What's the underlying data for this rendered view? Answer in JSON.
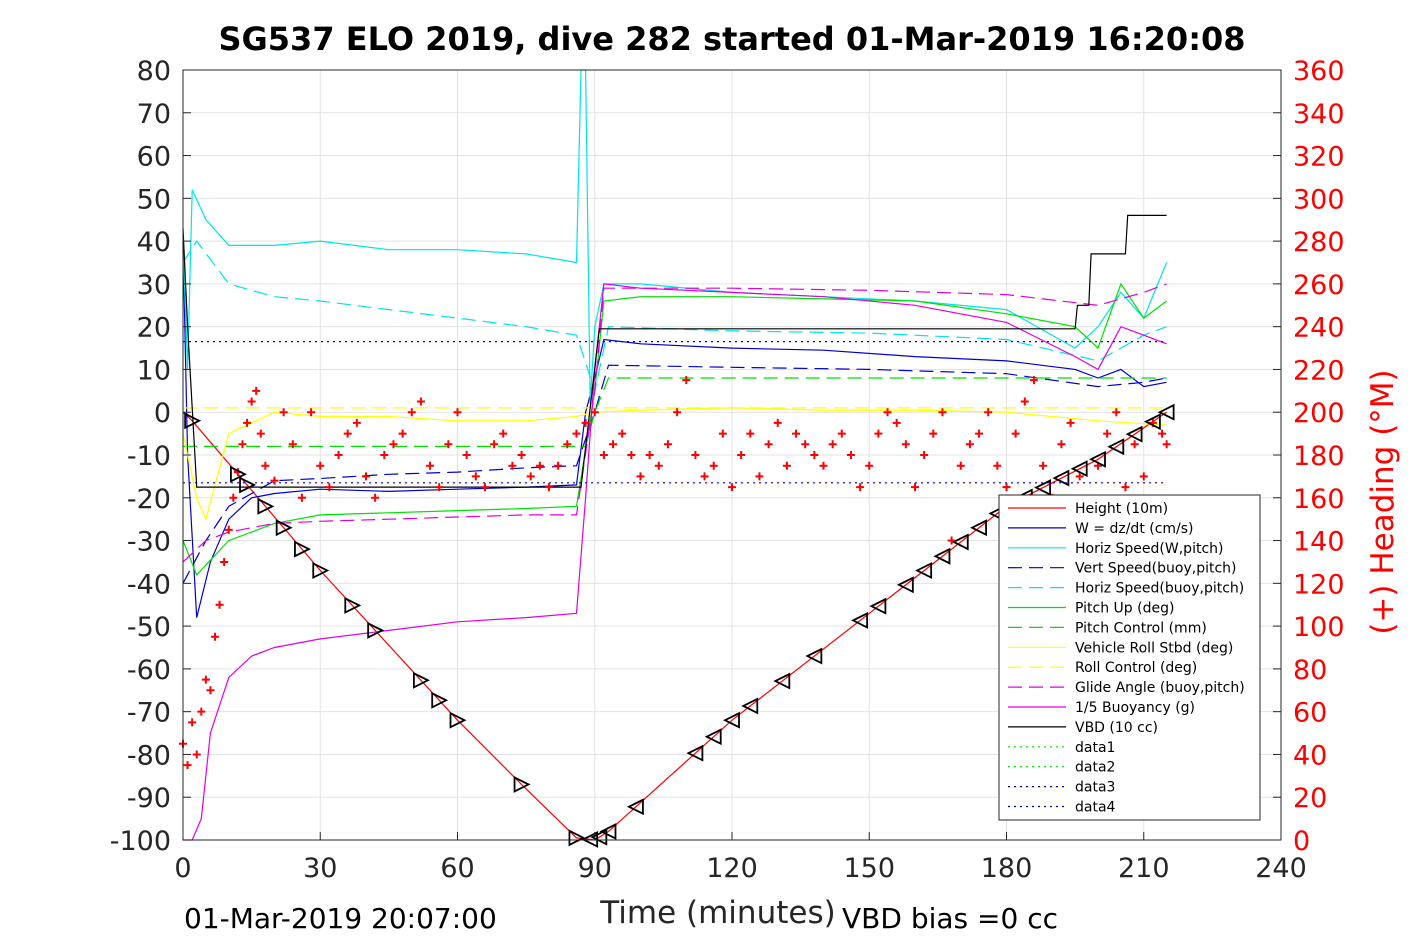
{
  "chart_data": {
    "type": "line",
    "title": "SG537 ELO 2019, dive 282 started 01-Mar-2019 16:20:08",
    "xlabel": "Time (minutes)",
    "ylabel_right": "(+) Heading (°M)",
    "xlim": [
      0,
      240
    ],
    "ylim_left": [
      -100,
      80
    ],
    "ylim_right": [
      0,
      360
    ],
    "x_ticks": [
      0,
      30,
      60,
      90,
      120,
      150,
      180,
      210,
      240
    ],
    "y_ticks_left": [
      80,
      70,
      60,
      50,
      40,
      30,
      20,
      10,
      0,
      -10,
      -20,
      -30,
      -40,
      -50,
      -60,
      -70,
      -80,
      -90,
      -100
    ],
    "y_ticks_right": [
      360,
      340,
      320,
      300,
      280,
      260,
      240,
      220,
      200,
      180,
      160,
      140,
      120,
      100,
      80,
      60,
      40,
      20,
      0
    ],
    "grid": true,
    "legend_position": "lower-right",
    "footer_left": "01-Mar-2019 20:07:00",
    "footer_right": "VBD bias =0 cc",
    "series": [
      {
        "name": "Height (10m)",
        "color": "#ff0000",
        "style": "solid",
        "x": [
          0,
          2,
          30,
          60,
          74,
          86,
          90,
          93,
          120,
          150,
          180,
          200,
          215
        ],
        "y": [
          0,
          -2,
          -37,
          -72,
          -87,
          -99.5,
          -100,
          -98,
          -72,
          -47,
          -22,
          -11,
          0
        ]
      },
      {
        "name": "W = dz/dt (cm/s)",
        "color": "#0000cc",
        "style": "solid",
        "x": [
          0,
          1,
          3,
          6,
          10,
          15,
          20,
          30,
          45,
          60,
          75,
          86,
          88,
          90,
          92,
          100,
          120,
          140,
          160,
          180,
          195,
          200,
          205,
          210,
          215
        ],
        "y": [
          40,
          -10,
          -48,
          -35,
          -25,
          -20,
          -19,
          -18,
          -18.5,
          -18,
          -17.5,
          -17,
          0,
          8,
          17,
          16,
          15,
          14.5,
          13,
          12,
          10,
          8,
          10,
          6,
          7
        ]
      },
      {
        "name": "Horiz Speed(W,pitch)",
        "color": "#00e5e5",
        "style": "solid",
        "x": [
          0,
          1,
          2,
          5,
          10,
          20,
          30,
          45,
          60,
          75,
          86,
          87,
          88,
          89,
          90,
          92,
          100,
          120,
          140,
          160,
          180,
          195,
          200,
          205,
          210,
          215
        ],
        "y": [
          40,
          10,
          52,
          45,
          39,
          39,
          40,
          38,
          38,
          37,
          35,
          80,
          80,
          2,
          20,
          30,
          30,
          28,
          27,
          26,
          24,
          15,
          20,
          28,
          22,
          35
        ]
      },
      {
        "name": "Vert Speed(buoy,pitch)",
        "color": "#0000cc",
        "style": "dashed",
        "x": [
          0,
          5,
          10,
          20,
          30,
          45,
          60,
          75,
          86,
          90,
          93,
          120,
          150,
          180,
          200,
          210,
          215
        ],
        "y": [
          -40,
          -30,
          -22,
          -16,
          -15.5,
          -14.5,
          -14,
          -13,
          -12.5,
          0,
          11,
          10.5,
          10,
          9,
          6,
          7,
          8
        ]
      },
      {
        "name": "Horiz Speed(buoy,pitch)",
        "color": "#00e5e5",
        "style": "dashed",
        "x": [
          0,
          3,
          10,
          20,
          30,
          45,
          60,
          75,
          86,
          90,
          93,
          120,
          150,
          180,
          200,
          210,
          215
        ],
        "y": [
          35,
          40,
          30,
          27,
          26,
          24,
          22,
          20,
          18,
          5,
          20,
          19,
          18.5,
          17,
          12,
          18,
          20
        ]
      },
      {
        "name": "Pitch Up (deg)",
        "color": "#00e000",
        "style": "solid",
        "x": [
          0,
          3,
          10,
          20,
          30,
          45,
          60,
          75,
          86,
          90,
          92,
          100,
          120,
          140,
          160,
          180,
          195,
          200,
          205,
          210,
          215
        ],
        "y": [
          -30,
          -38,
          -30,
          -26,
          -24,
          -23.5,
          -23,
          -22.5,
          -22,
          5,
          26,
          27,
          27,
          26.5,
          26,
          23,
          20,
          15,
          30,
          22,
          26
        ]
      },
      {
        "name": "Pitch Control (mm)",
        "color": "#00e000",
        "style": "dashed",
        "x": [
          0,
          10,
          20,
          30,
          45,
          60,
          75,
          86,
          88,
          90,
          93,
          120,
          150,
          180,
          200,
          215
        ],
        "y": [
          -8,
          -8,
          -8,
          -8,
          -8,
          -8,
          -8,
          -8,
          -8,
          0,
          8,
          8,
          8,
          8,
          8,
          8
        ]
      },
      {
        "name": "Vehicle Roll Stbd (deg)",
        "color": "#ffff00",
        "style": "solid",
        "x": [
          0,
          3,
          5,
          10,
          20,
          30,
          45,
          60,
          75,
          86,
          90,
          100,
          120,
          140,
          160,
          180,
          200,
          215
        ],
        "y": [
          -5,
          -20,
          -25,
          -5,
          0,
          -1,
          -1,
          -2,
          -2,
          -1,
          0,
          0.5,
          1,
          0.5,
          0.5,
          0,
          -2,
          -3
        ]
      },
      {
        "name": "Roll Control (deg)",
        "color": "#ffff00",
        "style": "dashed",
        "x": [
          0,
          10,
          30,
          60,
          86,
          90,
          120,
          150,
          180,
          215
        ],
        "y": [
          1,
          1,
          1,
          1,
          1,
          1,
          1,
          1,
          1,
          1
        ]
      },
      {
        "name": "Glide Angle (buoy,pitch)",
        "color": "#e000e0",
        "style": "dashed",
        "x": [
          0,
          5,
          10,
          20,
          30,
          45,
          60,
          75,
          86,
          90,
          92,
          120,
          150,
          180,
          200,
          210,
          215
        ],
        "y": [
          -35,
          -30,
          -28,
          -26,
          -25.5,
          -25,
          -24.5,
          -24,
          -24,
          5,
          29,
          29,
          28.5,
          27.5,
          25,
          28,
          30
        ]
      },
      {
        "name": "1/5 Buoyancy (g)",
        "color": "#e000e0",
        "style": "solid",
        "x": [
          0,
          2,
          4,
          6,
          10,
          15,
          20,
          30,
          45,
          60,
          75,
          86,
          88,
          90,
          92,
          100,
          120,
          140,
          160,
          180,
          195,
          200,
          205,
          210,
          215
        ],
        "y": [
          -100,
          -100,
          -95,
          -75,
          -62,
          -57,
          -55,
          -53,
          -51,
          -49,
          -48,
          -47,
          -20,
          10,
          30,
          29,
          28,
          27,
          25,
          21,
          13,
          10,
          20,
          18,
          16
        ]
      },
      {
        "name": "VBD (10 cc)",
        "color": "#000000",
        "style": "solid",
        "x": [
          0,
          1,
          3,
          86,
          87,
          91,
          92,
          195,
          195.5,
          198,
          198.5,
          204,
          204.5,
          206,
          206.5,
          215
        ],
        "y": [
          43,
          20,
          -17.5,
          -17.5,
          -17.5,
          19.5,
          19.5,
          19.5,
          25,
          25,
          37,
          37,
          37,
          37,
          46,
          46
        ]
      },
      {
        "name": "data1",
        "color": "#00e000",
        "style": "dotted",
        "x": [],
        "y": []
      },
      {
        "name": "data2",
        "color": "#00e000",
        "style": "dotted",
        "x": [],
        "y": []
      },
      {
        "name": "data3",
        "color": "#0000cc",
        "style": "dotted",
        "x": [
          0,
          215
        ],
        "y": [
          16.5,
          16.5
        ]
      },
      {
        "name": "data4",
        "color": "#0000cc",
        "style": "dotted",
        "x": [
          0,
          215
        ],
        "y": [
          -16.5,
          -16.5
        ]
      }
    ],
    "heading": {
      "axis": "right",
      "color": "#ff0000",
      "marker": "+",
      "x": [
        0,
        1,
        2,
        3,
        4,
        5,
        6,
        7,
        8,
        9,
        10,
        11,
        12,
        13,
        14,
        15,
        16,
        17,
        18,
        20,
        22,
        24,
        26,
        28,
        30,
        32,
        34,
        36,
        38,
        40,
        42,
        44,
        46,
        48,
        50,
        52,
        54,
        56,
        58,
        60,
        62,
        64,
        66,
        68,
        70,
        72,
        74,
        76,
        78,
        80,
        82,
        84,
        86,
        88,
        90,
        92,
        94,
        96,
        98,
        100,
        102,
        104,
        106,
        108,
        110,
        112,
        114,
        116,
        118,
        120,
        122,
        124,
        126,
        128,
        130,
        132,
        134,
        136,
        138,
        140,
        142,
        144,
        146,
        148,
        150,
        152,
        154,
        156,
        158,
        160,
        162,
        164,
        166,
        168,
        170,
        172,
        174,
        176,
        178,
        180,
        182,
        184,
        186,
        188,
        190,
        192,
        194,
        196,
        198,
        200,
        202,
        204,
        206,
        208,
        210,
        212,
        214,
        215
      ],
      "y": [
        45,
        35,
        55,
        40,
        60,
        75,
        70,
        95,
        110,
        130,
        145,
        160,
        172,
        185,
        195,
        205,
        210,
        190,
        175,
        168,
        200,
        185,
        160,
        200,
        175,
        165,
        180,
        190,
        195,
        170,
        160,
        180,
        185,
        190,
        200,
        205,
        175,
        165,
        185,
        200,
        180,
        170,
        165,
        185,
        190,
        175,
        180,
        170,
        175,
        165,
        175,
        185,
        190,
        195,
        200,
        180,
        185,
        190,
        180,
        170,
        180,
        175,
        185,
        200,
        215,
        180,
        170,
        175,
        190,
        165,
        180,
        190,
        170,
        185,
        195,
        175,
        190,
        185,
        180,
        175,
        185,
        190,
        180,
        165,
        175,
        190,
        200,
        195,
        185,
        165,
        180,
        190,
        200,
        140,
        175,
        185,
        190,
        200,
        175,
        165,
        190,
        205,
        215,
        175,
        160,
        185,
        195,
        170,
        155,
        175,
        190,
        200,
        165,
        185,
        170,
        195,
        190,
        185
      ]
    }
  }
}
